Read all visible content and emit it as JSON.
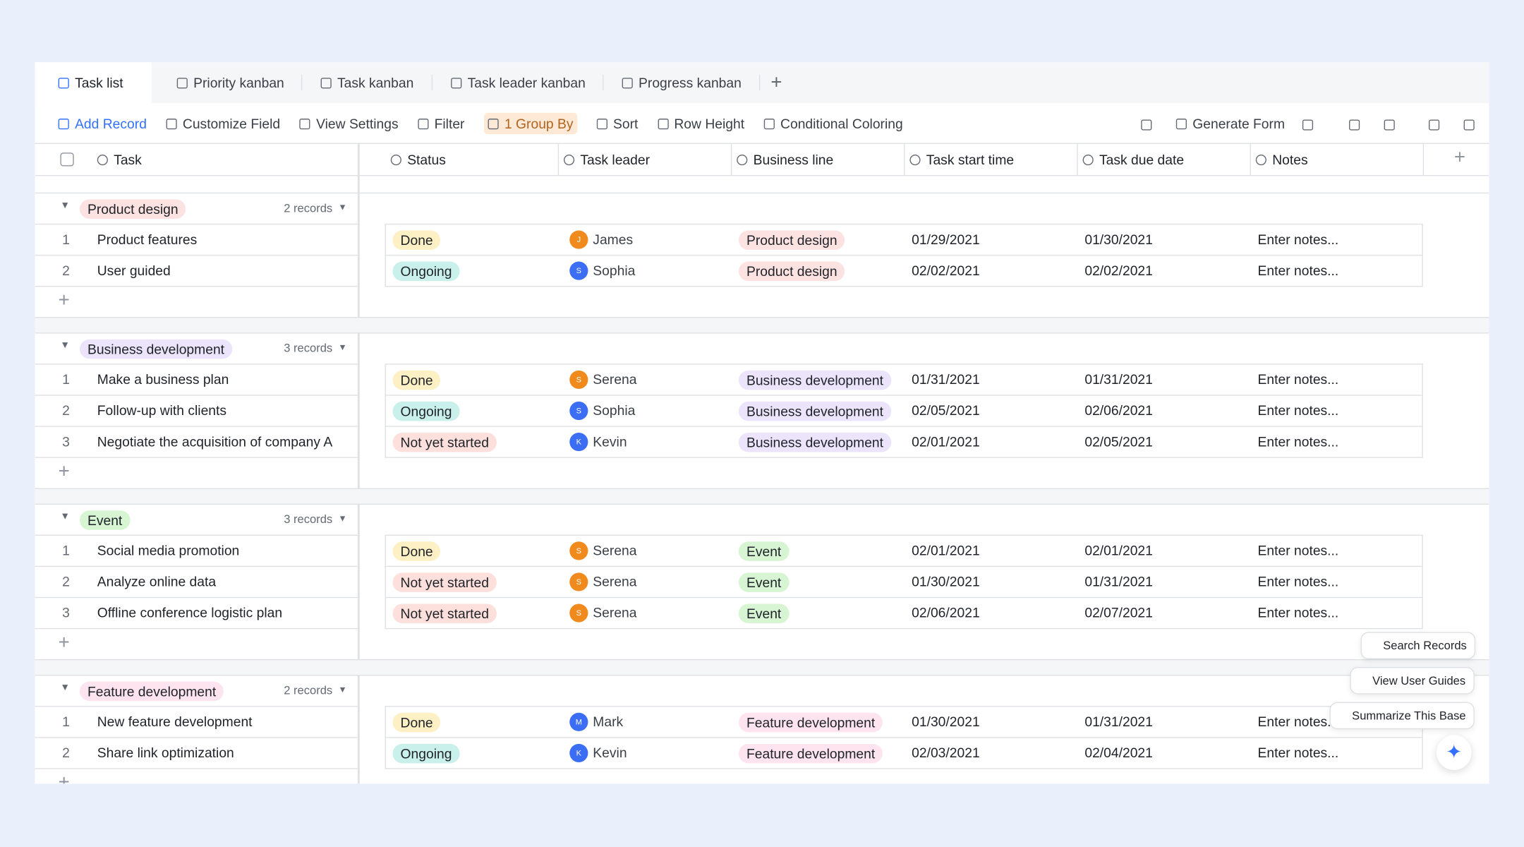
{
  "tabs": [
    "Task list",
    "Priority kanban",
    "Task kanban",
    "Task leader kanban",
    "Progress kanban"
  ],
  "toolbar": {
    "left": [
      "Add Record",
      "Customize Field",
      "View Settings",
      "Filter",
      "1 Group By",
      "Sort",
      "Row Height",
      "Conditional Coloring"
    ],
    "right": [
      "Generate Form"
    ]
  },
  "columns": [
    "Task",
    "Status",
    "Task leader",
    "Business line",
    "Task start time",
    "Task due date",
    "Notes"
  ],
  "groups": [
    {
      "name": "Product design",
      "count": "2 records",
      "rows": [
        {
          "index": 1,
          "task": "Product features",
          "status": "Done",
          "initial": "J",
          "leader": "James",
          "business_line": "Product design",
          "start": "01/29/2021",
          "due": "01/30/2021",
          "notes": "Enter notes..."
        },
        {
          "index": 2,
          "task": "User guided",
          "status": "Ongoing",
          "initial": "S",
          "leader": "Sophia",
          "business_line": "Product design",
          "start": "02/02/2021",
          "due": "02/02/2021",
          "notes": "Enter notes..."
        }
      ]
    },
    {
      "name": "Business development",
      "count": "3 records",
      "rows": [
        {
          "index": 1,
          "task": "Make a business plan",
          "status": "Done",
          "initial": "S",
          "leader": "Serena",
          "business_line": "Business development",
          "start": "01/31/2021",
          "due": "01/31/2021",
          "notes": "Enter notes..."
        },
        {
          "index": 2,
          "task": "Follow-up with clients",
          "status": "Ongoing",
          "initial": "S",
          "leader": "Sophia",
          "business_line": "Business development",
          "start": "02/05/2021",
          "due": "02/06/2021",
          "notes": "Enter notes..."
        },
        {
          "index": 3,
          "task": "Negotiate the acquisition of company A",
          "status": "Not yet started",
          "initial": "K",
          "leader": "Kevin",
          "business_line": "Business development",
          "start": "02/01/2021",
          "due": "02/05/2021",
          "notes": "Enter notes..."
        }
      ]
    },
    {
      "name": "Event",
      "count": "3 records",
      "rows": [
        {
          "index": 1,
          "task": "Social media promotion",
          "status": "Done",
          "initial": "S",
          "leader": "Serena",
          "business_line": "Event",
          "start": "02/01/2021",
          "due": "02/01/2021",
          "notes": "Enter notes..."
        },
        {
          "index": 2,
          "task": "Analyze online data",
          "status": "Not yet started",
          "initial": "S",
          "leader": "Serena",
          "business_line": "Event",
          "start": "01/30/2021",
          "due": "01/31/2021",
          "notes": "Enter notes..."
        },
        {
          "index": 3,
          "task": "Offline conference logistic plan",
          "status": "Not yet started",
          "initial": "S",
          "leader": "Serena",
          "business_line": "Event",
          "start": "02/06/2021",
          "due": "02/07/2021",
          "notes": "Enter notes..."
        }
      ]
    },
    {
      "name": "Feature development",
      "count": "2 records",
      "rows": [
        {
          "index": 1,
          "task": "New feature development",
          "status": "Done",
          "initial": "M",
          "leader": "Mark",
          "business_line": "Feature development",
          "start": "01/30/2021",
          "due": "01/31/2021",
          "notes": "Enter notes..."
        },
        {
          "index": 2,
          "task": "Share link optimization",
          "status": "Ongoing",
          "initial": "K",
          "leader": "Kevin",
          "business_line": "Feature development",
          "start": "02/03/2021",
          "due": "02/04/2021",
          "notes": "Enter notes..."
        }
      ]
    }
  ],
  "floating": [
    "Search Records",
    "View User Guides",
    "Summarize This Base"
  ]
}
